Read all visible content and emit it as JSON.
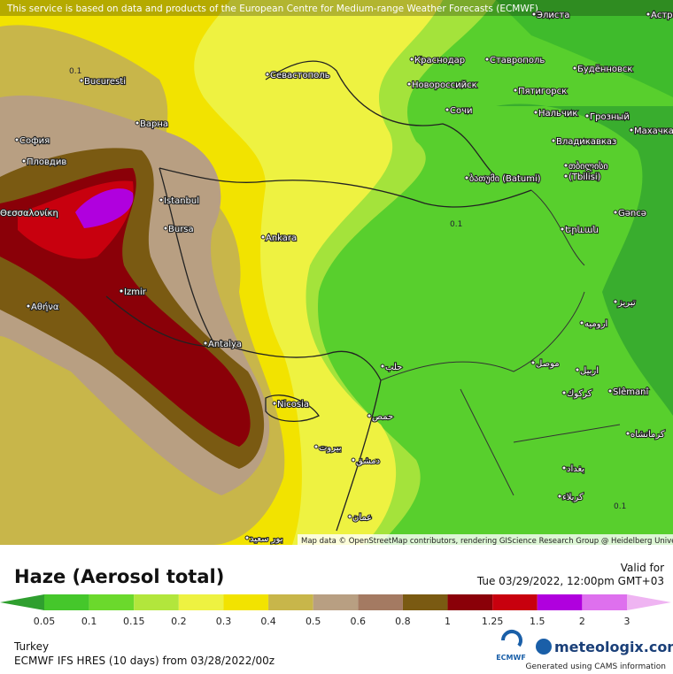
{
  "header": {
    "notice": "This service is based on data and products of the European Centre for Medium-range Weather Forecasts (ECMWF)"
  },
  "map": {
    "cities": [
      "Bucuresti",
      "София",
      "Пловдив",
      "Варна",
      "Θεσσαλονίκη",
      "Istanbul",
      "Bursa",
      "Ankara",
      "Izmir",
      "Αθήνα",
      "Antalya",
      "Nicosia",
      "Севастополь",
      "Краснодар",
      "Новороссийск",
      "Ставрополь",
      "Будённовск",
      "Пятигорск",
      "Сочи",
      "Нальчик",
      "Грозный",
      "Махачкала",
      "Владикавказ",
      "ბათუმი (Batumi)",
      "თბილისი",
      "(Tbilisi)",
      "Gəncə",
      "Երևան",
      "Элиста",
      "Астра",
      "حلب",
      "Slêmanî",
      "بيروت",
      "دمشق",
      "حمص",
      "عمان",
      "بغداد",
      "موصل",
      "اربيل",
      "كركوك",
      "كرمانشاه",
      "كربلاء",
      "تبریز",
      "ارومیه",
      "بور سعيد"
    ],
    "contour_labels": [
      "0.1",
      "0.1",
      "0.1"
    ],
    "attribution": "Map data © OpenStreetMap contributors, rendering GIScience Research Group @ Heidelberg University"
  },
  "legend": {
    "title": "Haze (Aerosol total)",
    "valid_label": "Valid for",
    "valid_time": "Tue 03/29/2022, 12:00pm GMT+03",
    "ticks": [
      0.05,
      0.1,
      0.15,
      0.2,
      0.3,
      0.4,
      0.5,
      0.6,
      0.8,
      1,
      1.25,
      1.5,
      2,
      3
    ],
    "colors": [
      "#2f9f2f",
      "#45c72b",
      "#6bd92c",
      "#b2e63c",
      "#eef241",
      "#f2e300",
      "#c8b64a",
      "#b89f82",
      "#a47a62",
      "#7a5a12",
      "#8a0008",
      "#c8000e",
      "#b000de",
      "#de70ee",
      "#efb4f2"
    ]
  },
  "footer": {
    "region": "Turkey",
    "model": "ECMWF IFS HRES (10 days) from 03/28/2022/00z",
    "ecmwf": "ECMWF",
    "brand": "meteologix.com",
    "cams": "Generated using CAMS information"
  }
}
